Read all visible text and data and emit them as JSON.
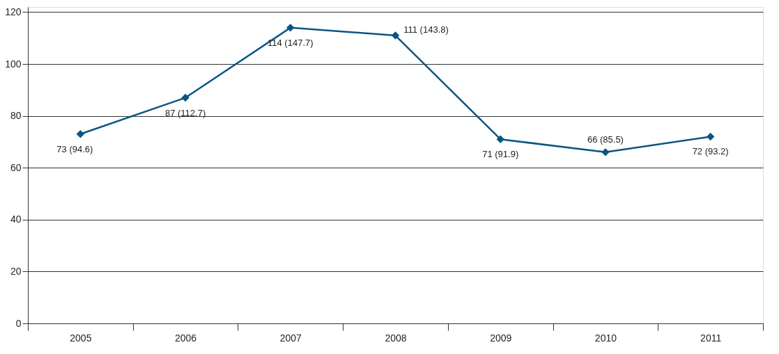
{
  "chart_data": {
    "type": "line",
    "categories": [
      "2005",
      "2006",
      "2007",
      "2008",
      "2009",
      "2010",
      "2011"
    ],
    "series": [
      {
        "color": "#0b5583",
        "values": [
          73,
          87,
          114,
          111,
          71,
          66,
          72
        ],
        "value_labels": [
          "73 (94.6)",
          "87 (112.7)",
          "114 (147.7)",
          "111 (143.8)",
          "71 (91.9)",
          "66 (85.5)",
          "72 (93.2)"
        ]
      }
    ],
    "ylim": [
      0,
      122
    ],
    "yticks": [
      0,
      20,
      40,
      60,
      80,
      100,
      120
    ],
    "grid": "y",
    "marker": "diamond",
    "line_style": "solid"
  }
}
